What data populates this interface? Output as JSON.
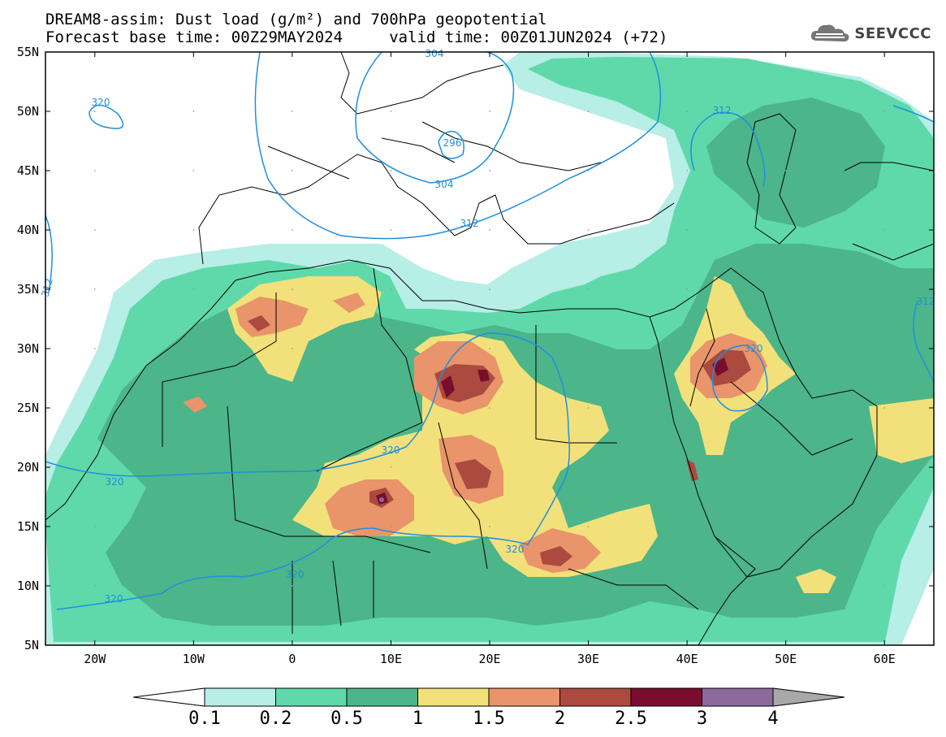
{
  "title": {
    "line1": "DREAM8-assim: Dust load (g/m²) and 700hPa geopotential",
    "line2": "Forecast base time: 00Z29MAY2024     valid time: 00Z01JUN2024 (+72)"
  },
  "logo": {
    "text": "SEEVCCC",
    "icon": "cloud-icon"
  },
  "axes": {
    "lat_labels": [
      "55N",
      "50N",
      "45N",
      "40N",
      "35N",
      "30N",
      "25N",
      "20N",
      "15N",
      "10N",
      "5N"
    ],
    "lon_labels": [
      "20W",
      "10W",
      "0",
      "10E",
      "20E",
      "30E",
      "40E",
      "50E",
      "60E"
    ],
    "lat_range": [
      5,
      55
    ],
    "lon_range": [
      -25,
      65
    ]
  },
  "colorbar": {
    "labels": [
      "0.1",
      "0.2",
      "0.5",
      "1",
      "1.5",
      "2",
      "2.5",
      "3",
      "4"
    ],
    "colors": [
      "#b7eee6",
      "#5fd9aa",
      "#4cb58a",
      "#f2e17a",
      "#e9946a",
      "#ab4a3f",
      "#7a0d2d",
      "#8d6a9c",
      "#a8a8a8"
    ]
  },
  "contour_labels": [
    "304",
    "296",
    "304",
    "312",
    "312",
    "320",
    "312",
    "320",
    "320",
    "320",
    "320",
    "320",
    "320",
    "312"
  ]
}
